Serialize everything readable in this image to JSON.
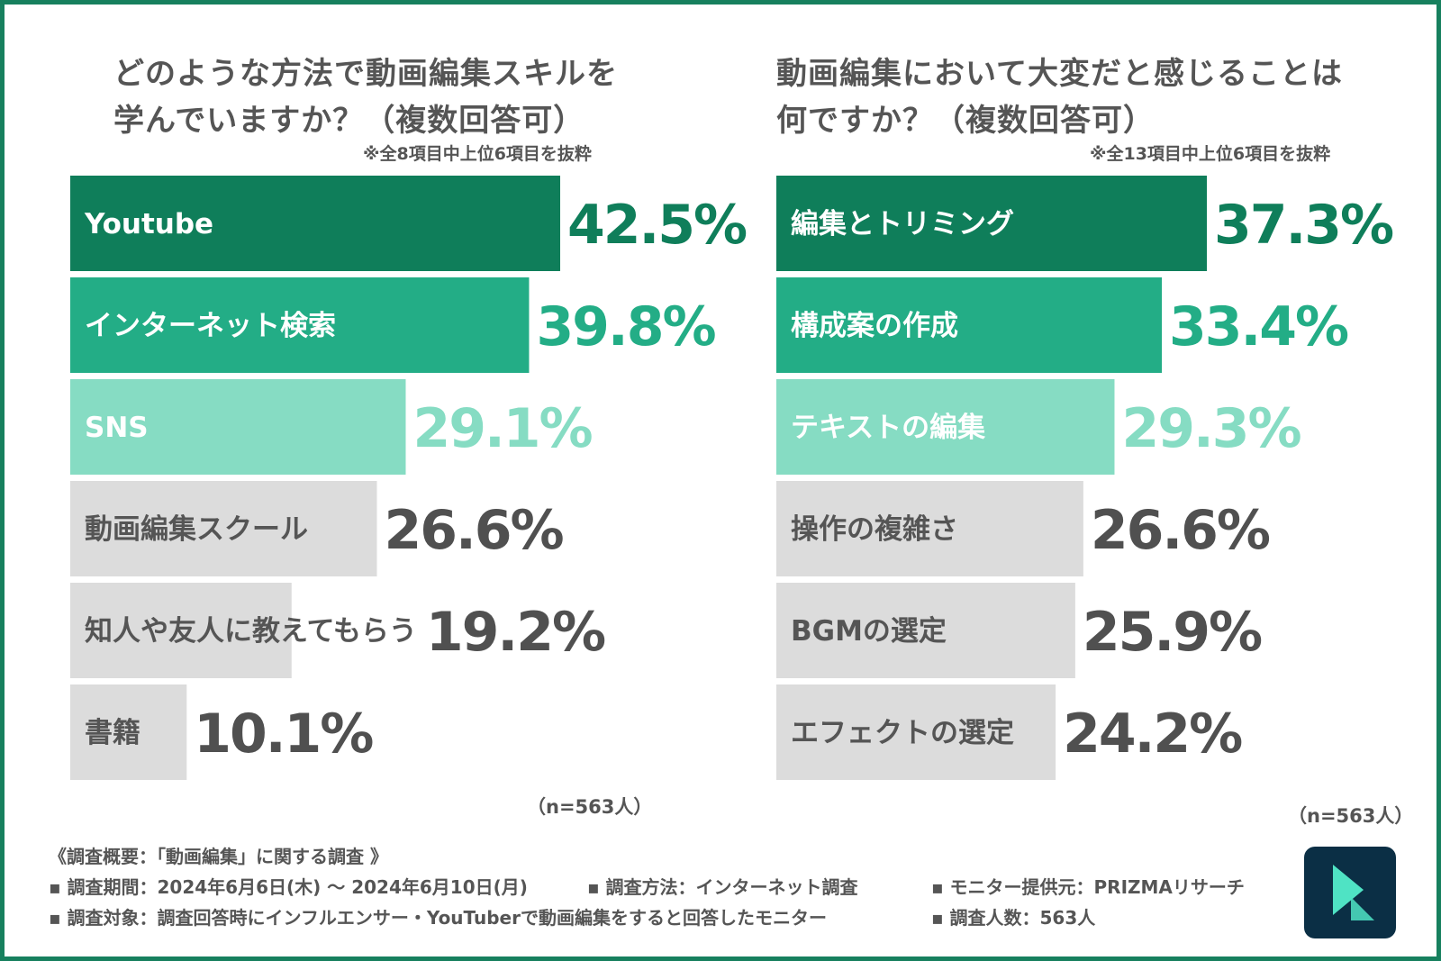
{
  "colors": {
    "frame": "#17805e",
    "text": "#555555",
    "rank1": "#0f7e5a",
    "rank2": "#23ad86",
    "rank3": "#86dcc3",
    "rest": "#dcdcdc",
    "rest_value": "#505050",
    "logo_bg": "#0b2f45",
    "logo_mark": "#4fe3c4"
  },
  "left": {
    "title_line1": "どのような方法で動画編集スキルを",
    "title_line2": "学んでいますか？（複数回答可）",
    "note": "※全8項目中上位6項目を抜粋",
    "sample": "（n=563人）"
  },
  "right": {
    "title_line1": "動画編集において大変だと感じることは",
    "title_line2": "何ですか？（複数回答可）",
    "note": "※全13項目中上位6項目を抜粋",
    "sample": "（n=563人）"
  },
  "chart_data": [
    {
      "type": "bar",
      "orientation": "horizontal",
      "title": "どのような方法で動画編集スキルを学んでいますか？（複数回答可）",
      "note": "※全8項目中上位6項目を抜粋",
      "unit": "%",
      "xlim": [
        0,
        42.5
      ],
      "categories": [
        "Youtube",
        "インターネット検索",
        "SNS",
        "動画編集スクール",
        "知人や友人に教えてもらう",
        "書籍"
      ],
      "values": [
        42.5,
        39.8,
        29.1,
        26.6,
        19.2,
        10.1
      ],
      "value_labels": [
        "42.5%",
        "39.8%",
        "29.1%",
        "26.6%",
        "19.2%",
        "10.1%"
      ],
      "sample": "（n=563人）"
    },
    {
      "type": "bar",
      "orientation": "horizontal",
      "title": "動画編集において大変だと感じることは何ですか？（複数回答可）",
      "note": "※全13項目中上位6項目を抜粋",
      "unit": "%",
      "xlim": [
        0,
        37.3
      ],
      "categories": [
        "編集とトリミング",
        "構成案の作成",
        "テキストの編集",
        "操作の複雑さ",
        "BGMの選定",
        "エフェクトの選定"
      ],
      "values": [
        37.3,
        33.4,
        29.3,
        26.6,
        25.9,
        24.2
      ],
      "value_labels": [
        "37.3%",
        "33.4%",
        "29.3%",
        "26.6%",
        "25.9%",
        "24.2%"
      ],
      "sample": "（n=563人）"
    }
  ],
  "survey": {
    "heading": "《調査概要：「動画編集」に関する調査 》",
    "period": "▪ 調査期間：2024年6月6日(木) 〜 2024年6月10日(月)",
    "method": "▪ 調査方法：インターネット調査",
    "provider": "▪ モニター提供元：PRIZMAリサーチ",
    "target": "▪ 調査対象：調査回答時にインフルエンサー・YouTuberで動画編集をすると回答したモニター",
    "respondents": "▪ 調査人数：563人"
  },
  "logo": {
    "icon": "filmora-logo-icon"
  }
}
